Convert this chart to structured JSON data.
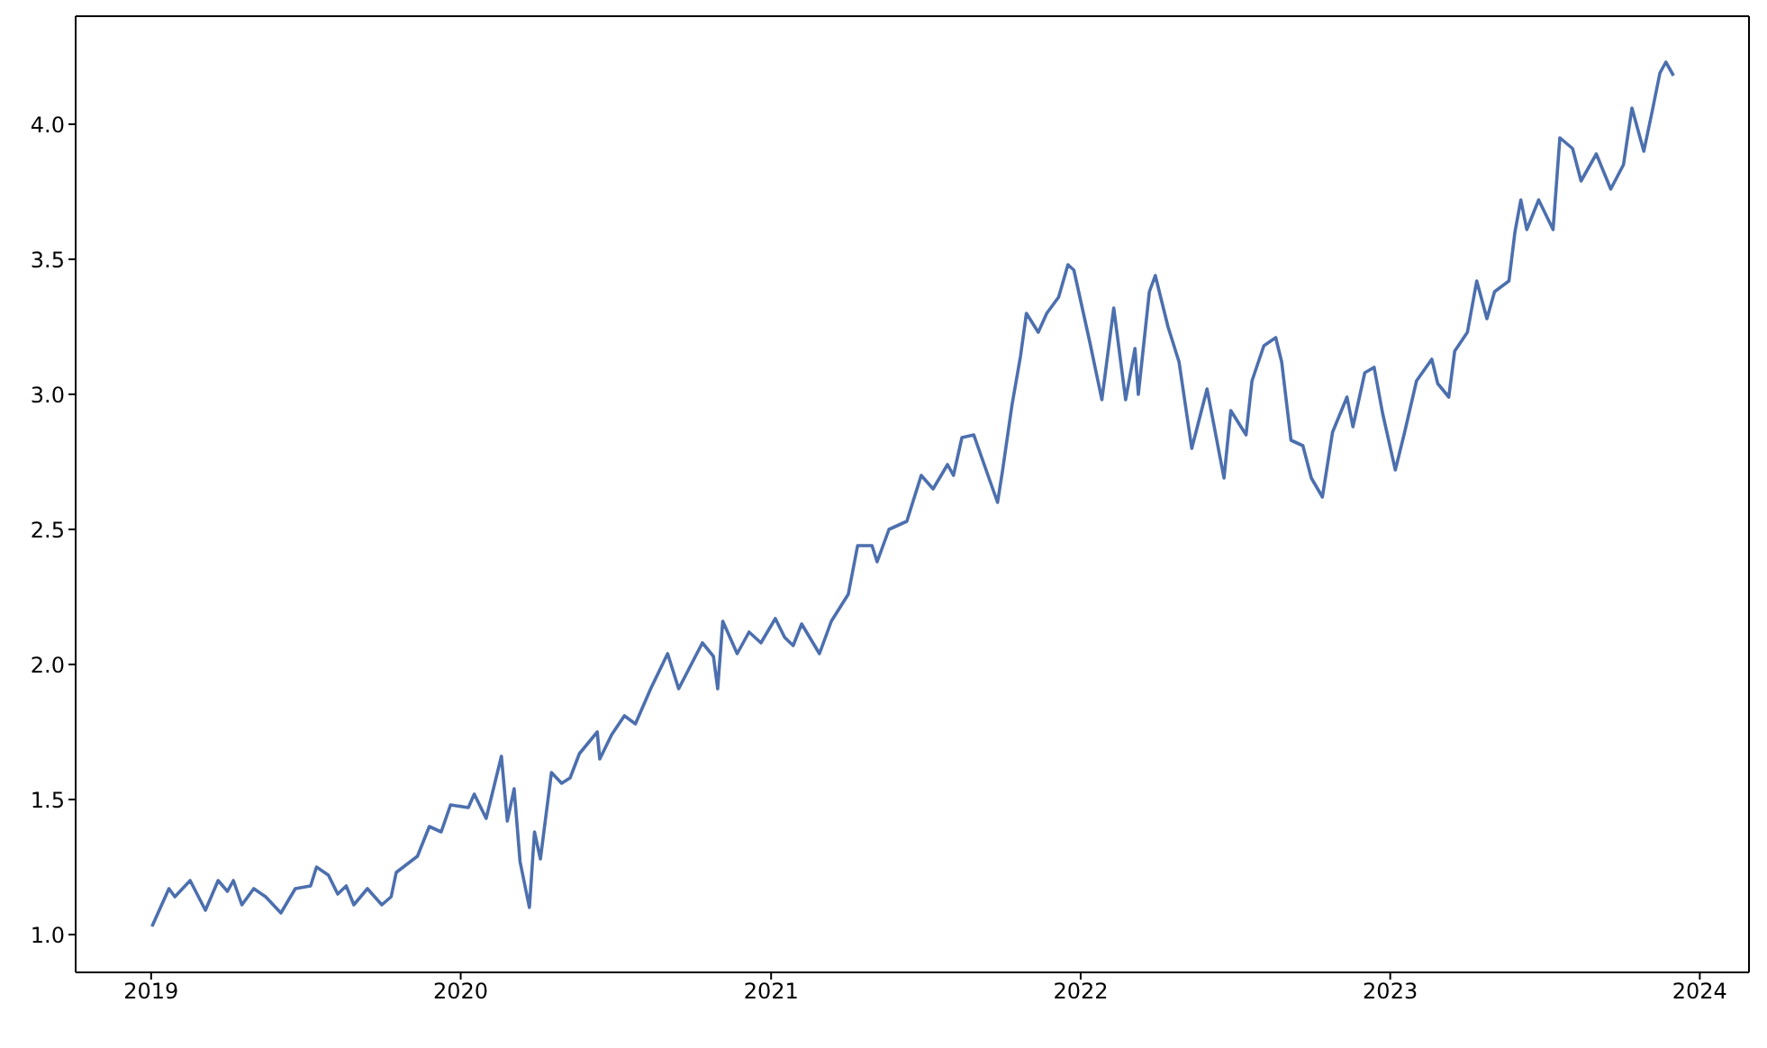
{
  "chart_data": {
    "type": "line",
    "xlim": [
      "2018-10-04",
      "2024-02-28"
    ],
    "ylim": [
      0.86,
      4.4
    ],
    "xticks": [
      {
        "value": "2019-01-01",
        "label": "2019"
      },
      {
        "value": "2020-01-01",
        "label": "2020"
      },
      {
        "value": "2021-01-01",
        "label": "2021"
      },
      {
        "value": "2022-01-01",
        "label": "2022"
      },
      {
        "value": "2023-01-01",
        "label": "2023"
      },
      {
        "value": "2024-01-01",
        "label": "2024"
      }
    ],
    "yticks": [
      {
        "value": 1,
        "label": "1.0"
      },
      {
        "value": 1.5,
        "label": "1.5"
      },
      {
        "value": 2,
        "label": "2.0"
      },
      {
        "value": 2.5,
        "label": "2.5"
      },
      {
        "value": 3,
        "label": "3.0"
      },
      {
        "value": 3.5,
        "label": "3.5"
      },
      {
        "value": 4,
        "label": "4.0"
      }
    ],
    "grid": false,
    "legend": false,
    "marker": "none",
    "line_style": "solid",
    "x": [
      "2019-01-02",
      "2019-01-22",
      "2019-01-29",
      "2019-02-16",
      "2019-03-06",
      "2019-03-21",
      "2019-04-01",
      "2019-04-08",
      "2019-04-18",
      "2019-05-02",
      "2019-05-16",
      "2019-06-03",
      "2019-06-20",
      "2019-07-08",
      "2019-07-15",
      "2019-07-29",
      "2019-08-09",
      "2019-08-19",
      "2019-08-28",
      "2019-09-13",
      "2019-09-30",
      "2019-10-11",
      "2019-10-17",
      "2019-11-11",
      "2019-11-25",
      "2019-12-09",
      "2019-12-20",
      "2020-01-10",
      "2020-01-17",
      "2020-01-31",
      "2020-02-18",
      "2020-02-25",
      "2020-03-04",
      "2020-03-11",
      "2020-03-22",
      "2020-03-28",
      "2020-04-04",
      "2020-04-17",
      "2020-04-29",
      "2020-05-09",
      "2020-05-20",
      "2020-06-10",
      "2020-06-13",
      "2020-06-27",
      "2020-07-12",
      "2020-07-25",
      "2020-08-12",
      "2020-09-01",
      "2020-09-14",
      "2020-10-12",
      "2020-10-25",
      "2020-10-30",
      "2020-11-05",
      "2020-11-22",
      "2020-12-06",
      "2020-12-20",
      "2021-01-06",
      "2021-01-17",
      "2021-01-27",
      "2021-02-06",
      "2021-02-27",
      "2021-03-13",
      "2021-04-02",
      "2021-04-13",
      "2021-04-30",
      "2021-05-06",
      "2021-05-20",
      "2021-06-10",
      "2021-06-27",
      "2021-07-11",
      "2021-07-28",
      "2021-08-04",
      "2021-08-14",
      "2021-08-28",
      "2021-09-07",
      "2021-09-25",
      "2021-10-01",
      "2021-10-12",
      "2021-10-22",
      "2021-10-29",
      "2021-11-12",
      "2021-11-22",
      "2021-12-06",
      "2021-12-17",
      "2021-12-24",
      "2022-01-12",
      "2022-01-26",
      "2022-02-09",
      "2022-02-23",
      "2022-03-06",
      "2022-03-10",
      "2022-03-23",
      "2022-03-30",
      "2022-04-14",
      "2022-04-27",
      "2022-05-12",
      "2022-05-30",
      "2022-06-19",
      "2022-06-27",
      "2022-07-15",
      "2022-07-22",
      "2022-08-05",
      "2022-08-19",
      "2022-08-26",
      "2022-09-06",
      "2022-09-20",
      "2022-09-30",
      "2022-10-13",
      "2022-10-25",
      "2022-11-11",
      "2022-11-18",
      "2022-12-02",
      "2022-12-13",
      "2022-12-23",
      "2023-01-07",
      "2023-01-18",
      "2023-02-01",
      "2023-02-19",
      "2023-02-26",
      "2023-03-11",
      "2023-03-18",
      "2023-04-02",
      "2023-04-13",
      "2023-04-25",
      "2023-05-04",
      "2023-05-21",
      "2023-05-28",
      "2023-06-04",
      "2023-06-11",
      "2023-06-25",
      "2023-07-12",
      "2023-07-20",
      "2023-08-04",
      "2023-08-14",
      "2023-09-01",
      "2023-09-18",
      "2023-10-03",
      "2023-10-13",
      "2023-10-27",
      "2023-11-06",
      "2023-11-15",
      "2023-11-22",
      "2023-12-01"
    ],
    "series": [
      {
        "color": "#4c6fae",
        "values": [
          1.03,
          1.17,
          1.14,
          1.2,
          1.09,
          1.2,
          1.16,
          1.2,
          1.11,
          1.17,
          1.14,
          1.08,
          1.17,
          1.18,
          1.25,
          1.22,
          1.15,
          1.18,
          1.11,
          1.17,
          1.11,
          1.14,
          1.23,
          1.29,
          1.4,
          1.38,
          1.48,
          1.47,
          1.52,
          1.43,
          1.66,
          1.42,
          1.54,
          1.27,
          1.1,
          1.38,
          1.28,
          1.6,
          1.56,
          1.58,
          1.67,
          1.75,
          1.65,
          1.74,
          1.81,
          1.78,
          1.91,
          2.04,
          1.91,
          2.08,
          2.03,
          1.91,
          2.16,
          2.04,
          2.12,
          2.08,
          2.17,
          2.1,
          2.07,
          2.15,
          2.04,
          2.16,
          2.26,
          2.44,
          2.44,
          2.38,
          2.5,
          2.53,
          2.7,
          2.65,
          2.74,
          2.7,
          2.84,
          2.85,
          2.76,
          2.6,
          2.72,
          2.96,
          3.14,
          3.3,
          3.23,
          3.3,
          3.36,
          3.48,
          3.46,
          3.19,
          2.98,
          3.32,
          2.98,
          3.17,
          3.0,
          3.38,
          3.44,
          3.25,
          3.12,
          2.8,
          3.02,
          2.69,
          2.94,
          2.85,
          3.05,
          3.18,
          3.21,
          3.12,
          2.83,
          2.81,
          2.69,
          2.62,
          2.86,
          2.99,
          2.88,
          3.08,
          3.1,
          2.93,
          2.72,
          2.86,
          3.05,
          3.13,
          3.04,
          2.99,
          3.16,
          3.23,
          3.42,
          3.28,
          3.38,
          3.42,
          3.6,
          3.72,
          3.61,
          3.72,
          3.61,
          3.95,
          3.91,
          3.79,
          3.89,
          3.76,
          3.85,
          4.06,
          3.9,
          4.05,
          4.19,
          4.23,
          4.18
        ]
      }
    ]
  }
}
